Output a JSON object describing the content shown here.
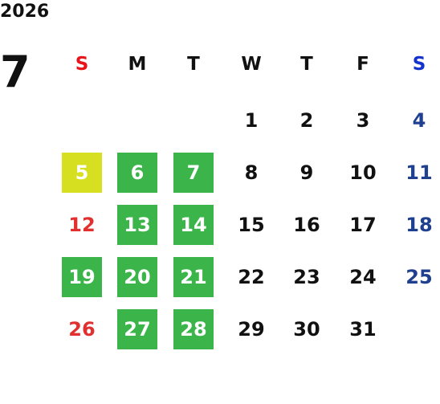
{
  "year": "2026",
  "month": "7",
  "weekdays": [
    "S",
    "M",
    "T",
    "W",
    "T",
    "F",
    "S"
  ],
  "weeks": [
    [
      null,
      null,
      null,
      1,
      2,
      3,
      4
    ],
    [
      5,
      6,
      7,
      8,
      9,
      10,
      11
    ],
    [
      12,
      13,
      14,
      15,
      16,
      17,
      18
    ],
    [
      19,
      20,
      21,
      22,
      23,
      24,
      25
    ],
    [
      26,
      27,
      28,
      29,
      30,
      31,
      null
    ]
  ]
}
